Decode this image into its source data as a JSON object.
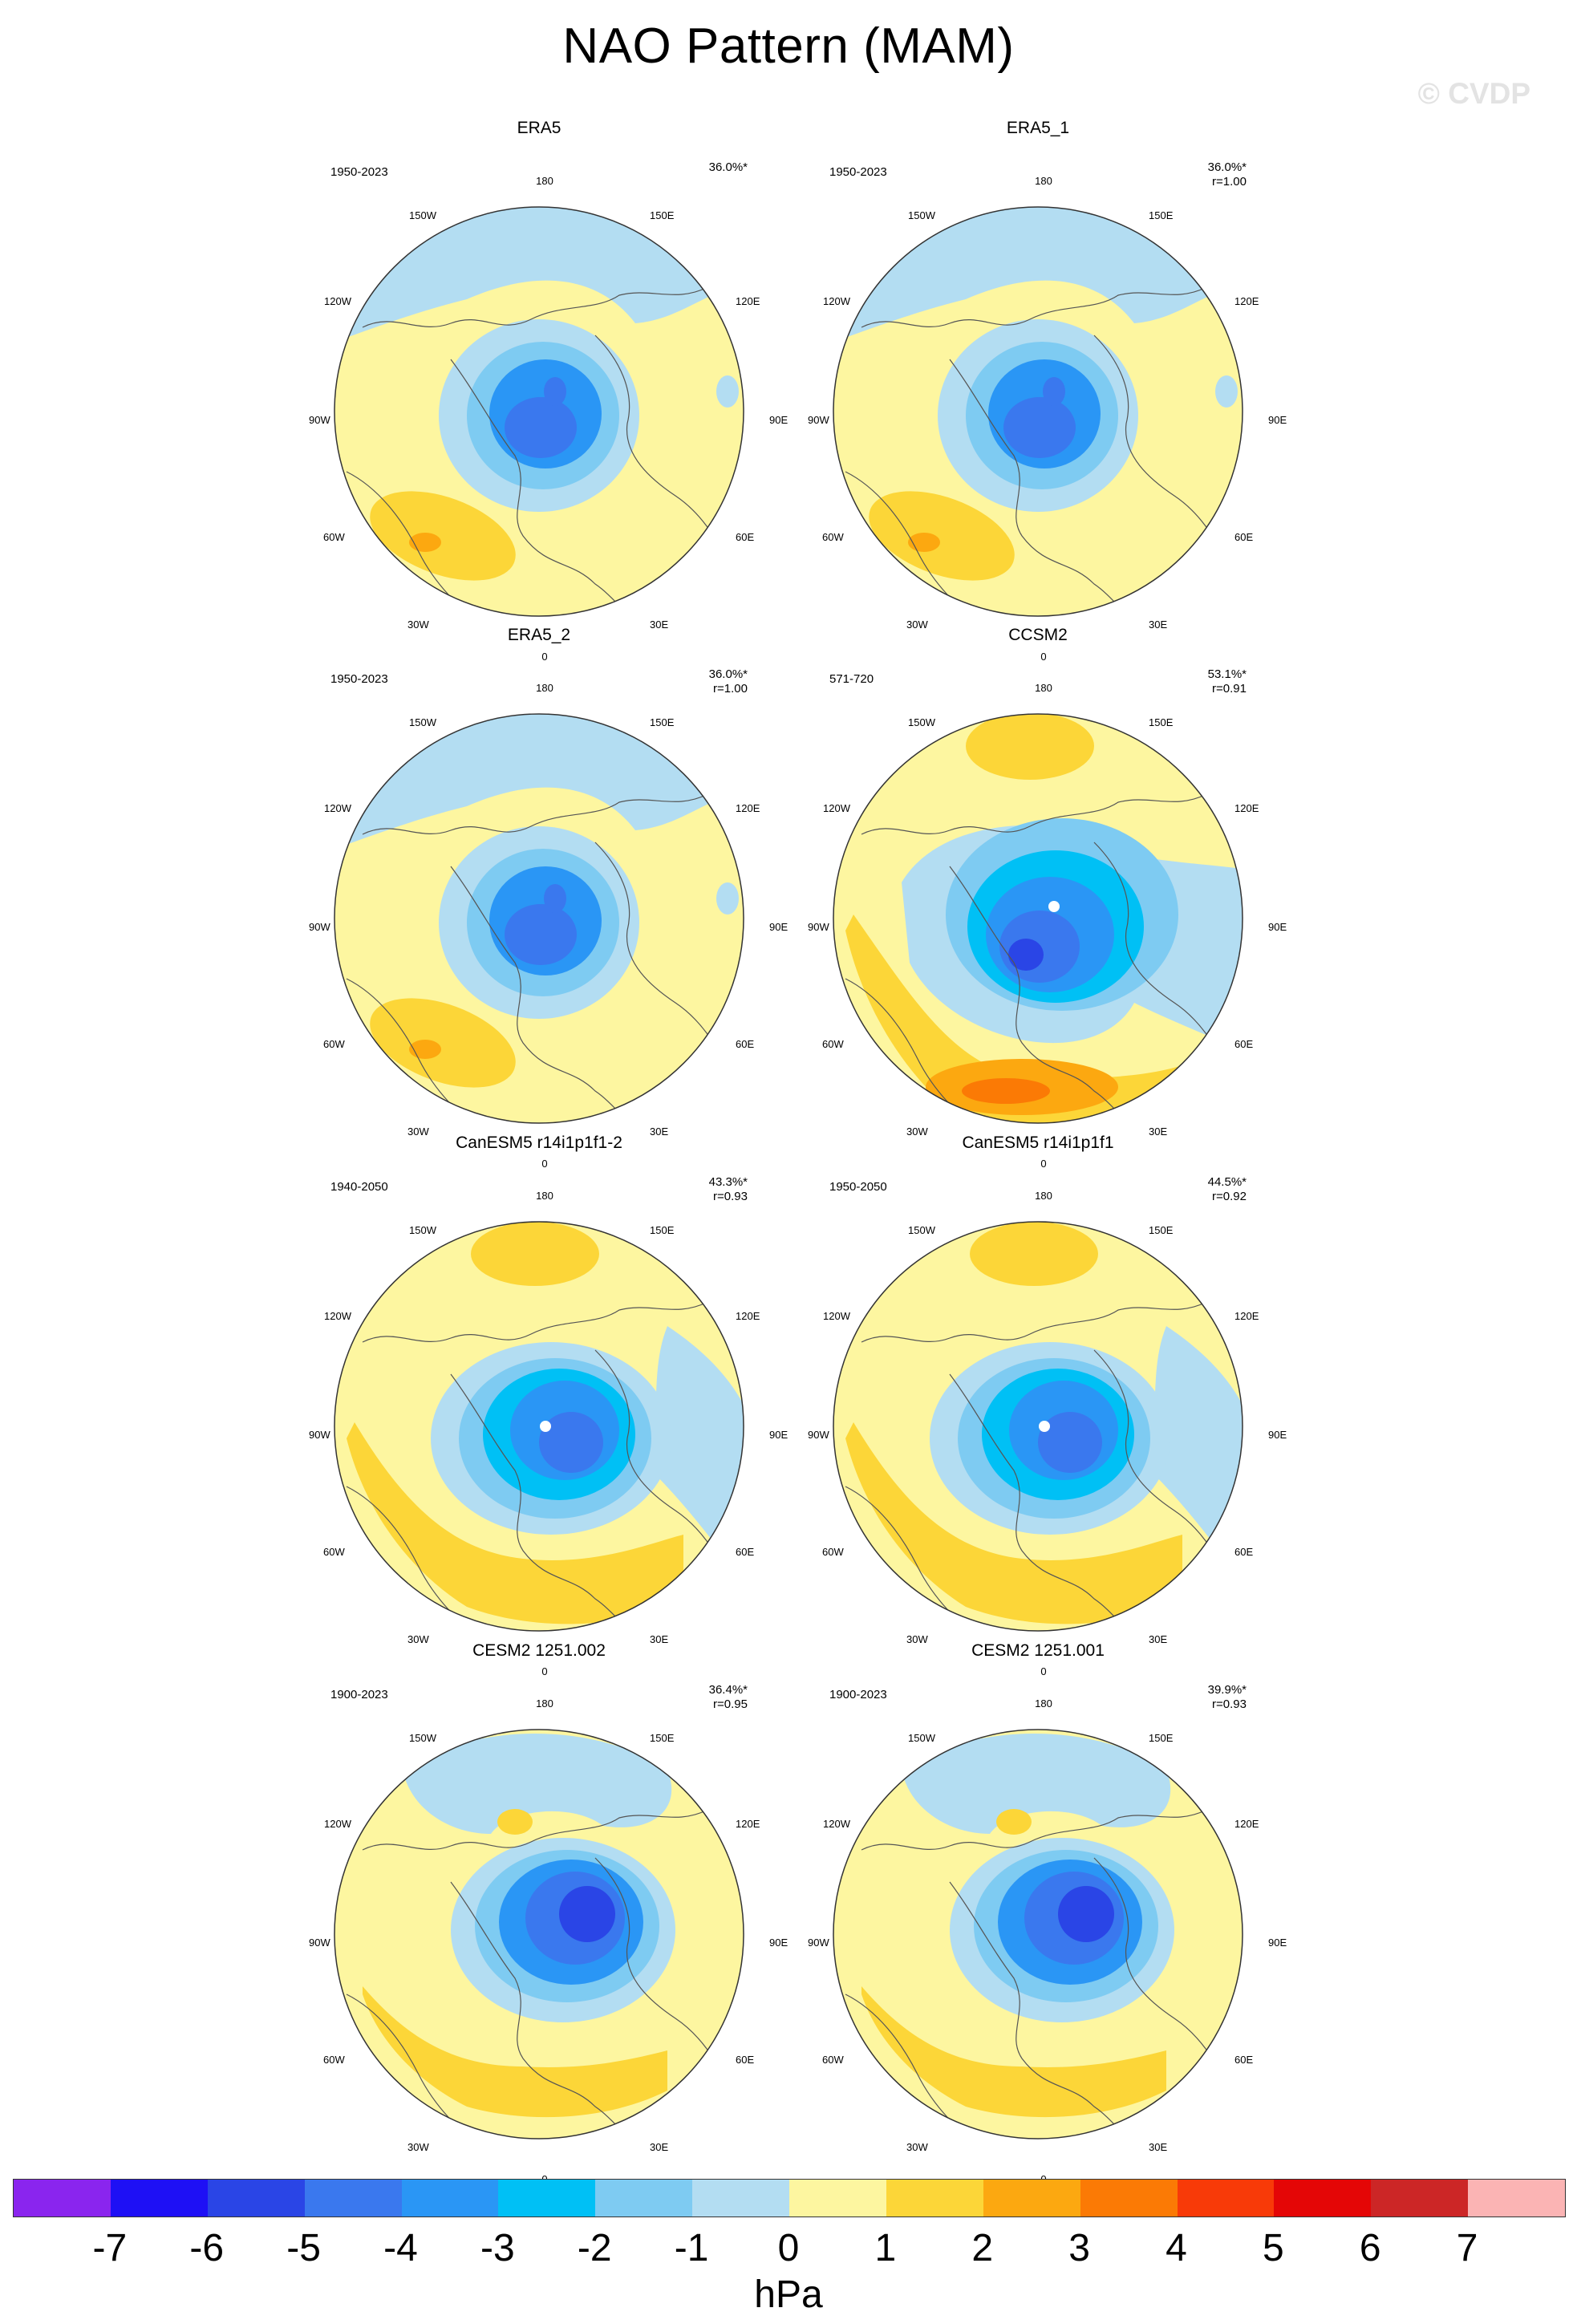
{
  "title": "NAO Pattern (MAM)",
  "watermark": "© CVDP",
  "lon_labels": {
    "l0": "0",
    "l180": "180",
    "l30E": "30E",
    "l60E": "60E",
    "l90E": "90E",
    "l120E": "120E",
    "l150E": "150E",
    "l30W": "30W",
    "l60W": "60W",
    "l90W": "90W",
    "l120W": "120W",
    "l150W": "150W"
  },
  "panels": [
    {
      "name": "ERA5",
      "period": "1950-2023",
      "pct": "36.0%*",
      "r": ""
    },
    {
      "name": "ERA5_1",
      "period": "1950-2023",
      "pct": "36.0%*",
      "r": "r=1.00"
    },
    {
      "name": "ERA5_2",
      "period": "1950-2023",
      "pct": "36.0%*",
      "r": "r=1.00"
    },
    {
      "name": "CCSM2",
      "period": "571-720",
      "pct": "53.1%*",
      "r": "r=0.91"
    },
    {
      "name": "CanESM5 r14i1p1f1-2",
      "period": "1940-2050",
      "pct": "43.3%*",
      "r": "r=0.93"
    },
    {
      "name": "CanESM5 r14i1p1f1",
      "period": "1950-2050",
      "pct": "44.5%*",
      "r": "r=0.92"
    },
    {
      "name": "CESM2 1251.002",
      "period": "1900-2023",
      "pct": "36.4%*",
      "r": "r=0.95"
    },
    {
      "name": "CESM2 1251.001",
      "period": "1900-2023",
      "pct": "39.9%*",
      "r": "r=0.93"
    }
  ],
  "colorbar": {
    "colors": [
      "#8a25ee",
      "#1e10f5",
      "#2a45e6",
      "#3a78ee",
      "#2a96f5",
      "#00c0f5",
      "#7ecbf2",
      "#b3ddf2",
      "#fdf6a0",
      "#fcd638",
      "#fca810",
      "#fb7a05",
      "#f83a08",
      "#e40606",
      "#cc2626",
      "#fbb4b4"
    ],
    "ticks": [
      "-7",
      "-6",
      "-5",
      "-4",
      "-3",
      "-2",
      "-1",
      "0",
      "1",
      "2",
      "3",
      "4",
      "5",
      "6",
      "7"
    ],
    "unit": "hPa"
  }
}
